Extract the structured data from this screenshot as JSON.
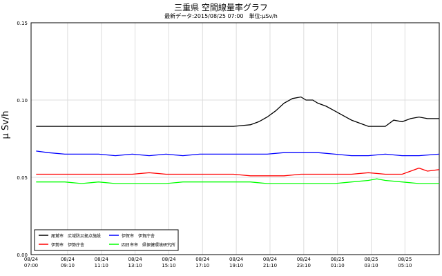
{
  "chart_data": {
    "type": "line",
    "title": "三重県 空間線量率グラフ",
    "subtitle": "最新データ:2015/08/25 07:00　単位:μSv/h",
    "ylabel": "μ Sv/h",
    "ylim": [
      0,
      0.15
    ],
    "yticks": [
      "0.00",
      "0.05",
      "0.10",
      "0.15"
    ],
    "xticks": [
      [
        "08/24",
        "07:00"
      ],
      [
        "08/24",
        "09:10"
      ],
      [
        "08/24",
        "11:10"
      ],
      [
        "08/24",
        "13:10"
      ],
      [
        "08/24",
        "15:10"
      ],
      [
        "08/24",
        "17:10"
      ],
      [
        "08/24",
        "19:10"
      ],
      [
        "08/24",
        "21:10"
      ],
      [
        "08/24",
        "23:10"
      ],
      [
        "08/25",
        "01:10"
      ],
      [
        "08/25",
        "03:10"
      ],
      [
        "08/25",
        "05:10"
      ]
    ],
    "x_hours_range": [
      0,
      24.2
    ],
    "xtick_hours": [
      0,
      2.1667,
      4.1667,
      6.1667,
      8.1667,
      10.1667,
      12.1667,
      14.1667,
      16.1667,
      18.1667,
      20.1667,
      22.1667
    ],
    "grid": true,
    "legend_position": "bottom-left",
    "series": [
      {
        "name": "尾鷲市　広域防災拠点施設",
        "color": "#000000",
        "x": [
          0.3,
          1,
          2,
          3,
          4,
          5,
          6,
          7,
          8,
          9,
          10,
          11,
          12,
          13,
          13.5,
          14,
          14.5,
          15,
          15.5,
          16,
          16.3,
          16.7,
          17,
          17.5,
          18,
          18.5,
          19,
          19.5,
          20,
          20.5,
          21,
          21.5,
          22,
          22.5,
          23,
          23.5,
          24.2
        ],
        "values": [
          0.083,
          0.083,
          0.083,
          0.083,
          0.083,
          0.083,
          0.083,
          0.083,
          0.083,
          0.083,
          0.083,
          0.083,
          0.083,
          0.084,
          0.086,
          0.089,
          0.093,
          0.098,
          0.101,
          0.102,
          0.1,
          0.1,
          0.098,
          0.096,
          0.093,
          0.09,
          0.087,
          0.085,
          0.083,
          0.083,
          0.083,
          0.087,
          0.086,
          0.088,
          0.089,
          0.088,
          0.088
        ]
      },
      {
        "name": "伊賀市　伊賀庁舎",
        "color": "#0000ff",
        "x": [
          0.3,
          1,
          2,
          3,
          4,
          5,
          6,
          7,
          8,
          9,
          10,
          11,
          12,
          13,
          14,
          15,
          16,
          17,
          18,
          19,
          20,
          21,
          22,
          23,
          24.2
        ],
        "values": [
          0.067,
          0.066,
          0.065,
          0.065,
          0.065,
          0.064,
          0.065,
          0.064,
          0.065,
          0.064,
          0.065,
          0.065,
          0.065,
          0.065,
          0.065,
          0.066,
          0.066,
          0.066,
          0.065,
          0.064,
          0.064,
          0.065,
          0.064,
          0.064,
          0.065
        ]
      },
      {
        "name": "伊勢市　伊勢庁舎",
        "color": "#ff0000",
        "x": [
          0.3,
          1,
          2,
          3,
          4,
          5,
          6,
          7,
          8,
          9,
          10,
          11,
          12,
          13,
          14,
          15,
          16,
          17,
          18,
          19,
          20,
          21,
          22,
          23,
          23.5,
          24.2
        ],
        "values": [
          0.052,
          0.052,
          0.052,
          0.052,
          0.052,
          0.052,
          0.052,
          0.053,
          0.052,
          0.052,
          0.052,
          0.052,
          0.052,
          0.051,
          0.051,
          0.051,
          0.052,
          0.052,
          0.052,
          0.052,
          0.053,
          0.052,
          0.052,
          0.056,
          0.054,
          0.055
        ]
      },
      {
        "name": "四日市市　県保健環境研究所",
        "color": "#00ff00",
        "x": [
          0.3,
          1,
          2,
          3,
          4,
          5,
          6,
          7,
          8,
          9,
          10,
          11,
          12,
          13,
          14,
          15,
          16,
          17,
          18,
          19,
          20,
          20.5,
          21,
          22,
          23,
          24.2
        ],
        "values": [
          0.047,
          0.047,
          0.047,
          0.046,
          0.047,
          0.046,
          0.046,
          0.046,
          0.046,
          0.047,
          0.047,
          0.047,
          0.047,
          0.047,
          0.046,
          0.046,
          0.046,
          0.046,
          0.046,
          0.047,
          0.048,
          0.049,
          0.048,
          0.047,
          0.046,
          0.046
        ]
      }
    ]
  }
}
